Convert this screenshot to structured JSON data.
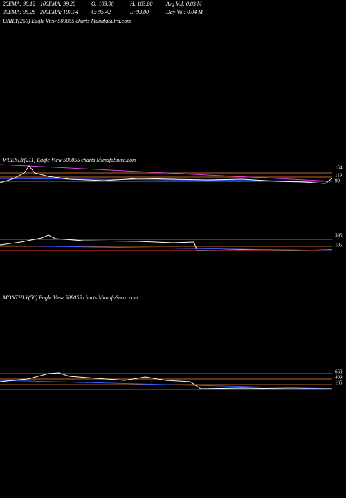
{
  "header": {
    "row1": [
      "20EMA: 98.12",
      "100EMA: 99.28",
      "O: 103.00",
      "H: 103.00",
      "Avg Vol: 0.03 M"
    ],
    "row2": [
      "30EMA: 95.26",
      "200EMA: 107.74",
      "C: 95.42",
      "L: 93.00",
      "Day Vol: 0.04 M"
    ]
  },
  "panels": [
    {
      "title": "DAILY(250) Eagle  View  509055 charts MunafaSutra.com",
      "labels": []
    },
    {
      "title": "WEEKLY(211) Eagle  View  509055 charts MunafaSutra.com",
      "labels": [
        "154",
        "119",
        "99"
      ]
    },
    {
      "title": "",
      "labels": [
        "395",
        "105"
      ]
    },
    {
      "title": "MONTHLY(50) Eagle  View  509055 charts MunafaSutra.com",
      "labels": [
        "658",
        "409",
        "105"
      ]
    }
  ]
}
